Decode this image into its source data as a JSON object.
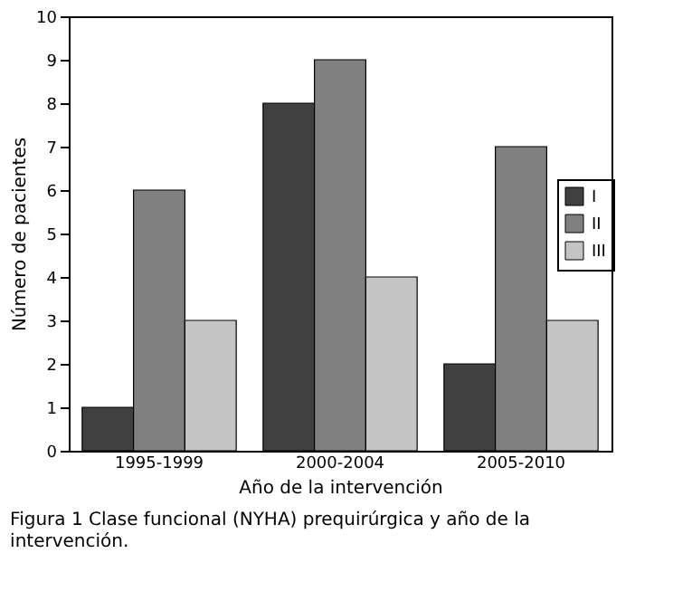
{
  "chart_data": {
    "type": "bar",
    "categories": [
      "1995-1999",
      "2000-2004",
      "2005-2010"
    ],
    "series": [
      {
        "name": "I",
        "color": "#404040",
        "values": [
          1,
          8,
          2
        ]
      },
      {
        "name": "II",
        "color": "#808080",
        "values": [
          6,
          9,
          7
        ]
      },
      {
        "name": "III",
        "color": "#c4c4c4",
        "values": [
          3,
          4,
          3
        ]
      }
    ],
    "xlabel": "Año de la intervención",
    "ylabel": "Número de pacientes",
    "ylim": [
      0,
      10
    ],
    "yticks": [
      0,
      1,
      2,
      3,
      4,
      5,
      6,
      7,
      8,
      9,
      10
    ],
    "grid": false,
    "legend": "right",
    "annotations": [
      "Figura 1   Clase funcional (NYHA) prequirúrgica y año de la intervención."
    ]
  }
}
